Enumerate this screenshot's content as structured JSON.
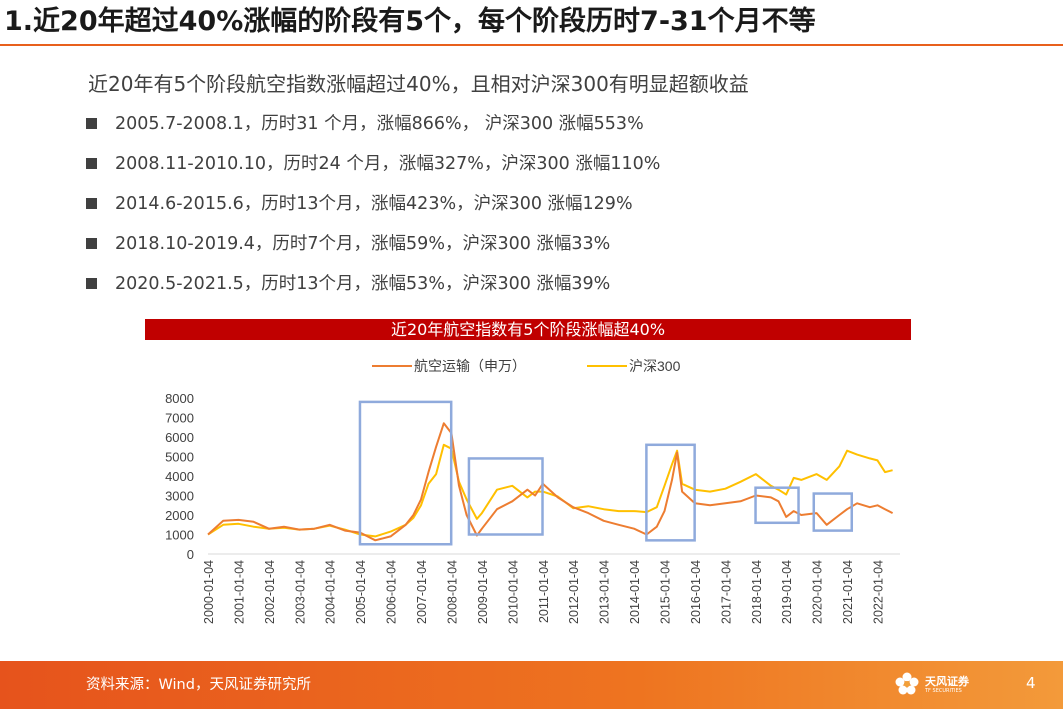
{
  "slide": {
    "title": "1.近20年超过40%涨幅的阶段有5个，每个阶段历时7-31个月不等",
    "subtitle": "近20年有5个阶段航空指数涨幅超过40%，且相对沪深300有明显超额收益",
    "bullets": [
      "2005.7-2008.1，历时31 个月，涨幅866%， 沪深300 涨幅553%",
      "2008.11-2010.10，历时24 个月，涨幅327%，沪深300 涨幅110%",
      "2014.6-2015.6，历时13个月，涨幅423%，沪深300 涨幅129%",
      "2018.10-2019.4，历时7个月，涨幅59%，沪深300 涨幅33%",
      "2020.5-2021.5，历时13个月，涨幅53%，沪深300 涨幅39%"
    ],
    "source": "资料来源：Wind，天风证券研究所",
    "page_number": "4",
    "logo_text": "天风证券",
    "logo_sub": "TF SECURITIES"
  },
  "chart_data": {
    "type": "line",
    "title": "近20年航空指数有5个阶段涨幅超40%",
    "x": [
      "2000-01-04",
      "2000-07-04",
      "2001-01-04",
      "2001-07-04",
      "2002-01-04",
      "2002-07-04",
      "2003-01-04",
      "2003-07-04",
      "2004-01-04",
      "2004-07-04",
      "2005-01-04",
      "2005-07-04",
      "2006-01-04",
      "2006-07-04",
      "2006-10-04",
      "2007-01-04",
      "2007-04-04",
      "2007-07-04",
      "2007-10-04",
      "2008-01-04",
      "2008-04-04",
      "2008-07-04",
      "2008-11-04",
      "2009-01-04",
      "2009-07-04",
      "2010-01-04",
      "2010-07-04",
      "2010-10-04",
      "2011-01-04",
      "2011-07-04",
      "2012-01-04",
      "2012-07-04",
      "2013-01-04",
      "2013-07-04",
      "2014-01-04",
      "2014-06-04",
      "2014-10-04",
      "2015-01-04",
      "2015-04-04",
      "2015-06-04",
      "2015-08-04",
      "2016-01-04",
      "2016-07-04",
      "2017-01-04",
      "2017-07-04",
      "2018-01-04",
      "2018-07-04",
      "2018-10-04",
      "2019-01-04",
      "2019-04-04",
      "2019-07-04",
      "2020-01-04",
      "2020-05-04",
      "2020-10-04",
      "2021-01-04",
      "2021-05-04",
      "2021-10-04",
      "2022-01-04",
      "2022-04-04",
      "2022-07-04"
    ],
    "series": [
      {
        "name": "航空运输（申万）",
        "color": "#ed7d31",
        "values": [
          1000,
          1700,
          1750,
          1650,
          1300,
          1400,
          1250,
          1300,
          1500,
          1200,
          1100,
          700,
          900,
          1500,
          2000,
          2800,
          4200,
          5500,
          6700,
          6200,
          3500,
          2000,
          950,
          1300,
          2300,
          2700,
          3300,
          3000,
          3600,
          2900,
          2400,
          2100,
          1700,
          1500,
          1300,
          1000,
          1400,
          2200,
          3800,
          5200,
          3200,
          2600,
          2500,
          2600,
          2700,
          3000,
          2900,
          2700,
          1900,
          2200,
          2000,
          2100,
          1500,
          2000,
          2300,
          2600,
          2400,
          2500,
          2300,
          2100
        ]
      },
      {
        "name": "沪深300",
        "color": "#ffc000",
        "values": [
          1000,
          1500,
          1550,
          1400,
          1300,
          1350,
          1250,
          1300,
          1450,
          1250,
          1000,
          900,
          1150,
          1500,
          1850,
          2500,
          3600,
          4100,
          5600,
          5400,
          3700,
          2800,
          1800,
          2100,
          3300,
          3500,
          2900,
          3200,
          3200,
          2950,
          2350,
          2450,
          2300,
          2200,
          2200,
          2150,
          2400,
          3500,
          4600,
          5300,
          3600,
          3300,
          3200,
          3350,
          3700,
          4100,
          3500,
          3300,
          3050,
          3900,
          3800,
          4100,
          3800,
          4500,
          5300,
          5100,
          4900,
          4800,
          4200,
          4300
        ]
      }
    ],
    "ylim": [
      0,
      8000
    ],
    "yticks": [
      0,
      1000,
      2000,
      3000,
      4000,
      5000,
      6000,
      7000,
      8000
    ],
    "xtick_labels": [
      "2000-01-04",
      "2001-01-04",
      "2002-01-04",
      "2003-01-04",
      "2004-01-04",
      "2005-01-04",
      "2006-01-04",
      "2007-01-04",
      "2008-01-04",
      "2009-01-04",
      "2010-01-04",
      "2011-01-04",
      "2012-01-04",
      "2013-01-04",
      "2014-01-04",
      "2015-01-04",
      "2016-01-04",
      "2017-01-04",
      "2018-01-04",
      "2019-01-04",
      "2020-01-04",
      "2021-01-04",
      "2022-01-04"
    ],
    "highlight_periods": [
      {
        "start": "2005-01",
        "end": "2008-01",
        "color": "#8faadc"
      },
      {
        "start": "2008-08",
        "end": "2011-01",
        "color": "#8faadc"
      },
      {
        "start": "2014-06",
        "end": "2016-01",
        "color": "#8faadc"
      },
      {
        "start": "2018-01",
        "end": "2019-06",
        "color": "#8faadc"
      },
      {
        "start": "2019-12",
        "end": "2021-03",
        "color": "#8faadc"
      }
    ],
    "highlight_ranges": [
      [
        500,
        7800
      ],
      [
        1000,
        4900
      ],
      [
        700,
        5600
      ],
      [
        1600,
        3400
      ],
      [
        1200,
        3100
      ]
    ],
    "legend": "top",
    "xlabel": "",
    "ylabel": ""
  }
}
